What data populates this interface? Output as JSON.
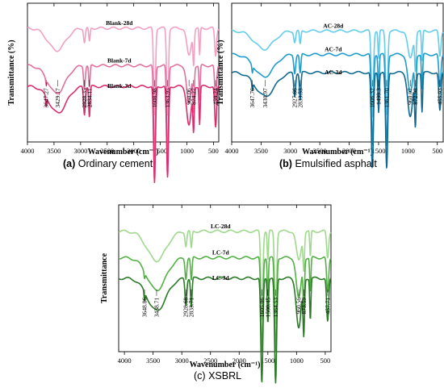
{
  "chart_data": [
    {
      "type": "line",
      "panel": "a",
      "caption": {
        "letter": "(a)",
        "text": "Ordinary cement"
      },
      "xlabel": "Wavenumber (cm⁻¹)",
      "ylabel": "Transmittance (%)",
      "xlim": [
        4000,
        400
      ],
      "xticks": [
        4000,
        3500,
        3000,
        2500,
        2000,
        1500,
        1000,
        500
      ],
      "grid": false,
      "y_ticks_shown": false,
      "series": [
        {
          "name": "Blank-28d",
          "color": "#f2a0c2",
          "offset": 0.82,
          "peaks": [
            [
              3450,
              0.16,
              230
            ],
            [
              2927,
              0.1,
              22
            ],
            [
              2834,
              0.1,
              18
            ],
            [
              1609,
              0.62,
              25
            ],
            [
              1364,
              0.62,
              25
            ],
            [
              960,
              0.2,
              60
            ],
            [
              873,
              0.24,
              18
            ],
            [
              760,
              0.2,
              15
            ],
            [
              459,
              0.2,
              25
            ]
          ]
        },
        {
          "name": "Blank-7d",
          "color": "#e1709e",
          "offset": 0.55,
          "peaks": [
            [
              3450,
              0.2,
              230
            ],
            [
              3647,
              0.04,
              12
            ],
            [
              2928,
              0.16,
              22
            ],
            [
              2834,
              0.16,
              18
            ],
            [
              1609,
              0.66,
              25
            ],
            [
              1364,
              0.66,
              25
            ],
            [
              960,
              0.28,
              60
            ],
            [
              873,
              0.3,
              18
            ],
            [
              760,
              0.25,
              15
            ],
            [
              459,
              0.26,
              25
            ]
          ]
        },
        {
          "name": "Blank-3d",
          "color": "#d92e6f",
          "offset": 0.4,
          "peaks": [
            [
              3429,
              0.19,
              230
            ],
            [
              3647,
              0.07,
              12
            ],
            [
              2928,
              0.2,
              22
            ],
            [
              2834,
              0.22,
              18
            ],
            [
              1609,
              0.7,
              25
            ],
            [
              1364,
              0.66,
              25
            ],
            [
              960,
              0.28,
              60
            ],
            [
              874,
              0.3,
              18
            ],
            [
              760,
              0.27,
              15
            ],
            [
              459,
              0.3,
              25
            ]
          ]
        }
      ],
      "annotations": [
        "3647.27",
        "3429.17",
        "2928.35",
        "2834.11",
        "1608.98",
        "1363.95",
        "960.06",
        "874.27",
        "459.24"
      ]
    },
    {
      "type": "line",
      "panel": "b",
      "caption": {
        "letter": "(b)",
        "text": "Emulsified asphalt"
      },
      "xlabel": "Wavenumber (cm⁻¹)",
      "ylabel": "Transmittance (%)",
      "xlim": [
        4000,
        400
      ],
      "xticks": [
        4000,
        3500,
        3000,
        2500,
        2000,
        1500,
        1000,
        500
      ],
      "grid": false,
      "y_ticks_shown": false,
      "series": [
        {
          "name": "AC-28d",
          "color": "#63cdeb",
          "offset": 0.8,
          "peaks": [
            [
              3450,
              0.13,
              230
            ],
            [
              2927,
              0.08,
              22
            ],
            [
              2834,
              0.1,
              18
            ],
            [
              1606,
              0.62,
              25
            ],
            [
              1499,
              0.2,
              15
            ],
            [
              1362,
              0.6,
              25
            ],
            [
              960,
              0.2,
              60
            ],
            [
              873,
              0.26,
              18
            ],
            [
              760,
              0.22,
              15
            ],
            [
              456,
              0.18,
              25
            ]
          ]
        },
        {
          "name": "AC-7d",
          "color": "#1e9ccc",
          "offset": 0.63,
          "peaks": [
            [
              3450,
              0.16,
              230
            ],
            [
              3648,
              0.05,
              12
            ],
            [
              2927,
              0.13,
              22
            ],
            [
              2834,
              0.14,
              18
            ],
            [
              1606,
              0.66,
              25
            ],
            [
              1499,
              0.25,
              15
            ],
            [
              1362,
              0.66,
              25
            ],
            [
              960,
              0.28,
              60
            ],
            [
              873,
              0.32,
              18
            ],
            [
              760,
              0.25,
              15
            ],
            [
              456,
              0.24,
              25
            ]
          ]
        },
        {
          "name": "AC-3d",
          "color": "#0f6b92",
          "offset": 0.5,
          "peaks": [
            [
              3431,
              0.17,
              230
            ],
            [
              3648,
              0.06,
              12
            ],
            [
              2928,
              0.17,
              22
            ],
            [
              2834,
              0.2,
              18
            ],
            [
              1606,
              0.7,
              25
            ],
            [
              1499,
              0.28,
              15
            ],
            [
              1362,
              0.7,
              25
            ],
            [
              960,
              0.32,
              60
            ],
            [
              873,
              0.36,
              18
            ],
            [
              760,
              0.28,
              15
            ],
            [
              456,
              0.28,
              25
            ]
          ]
        }
      ],
      "annotations": [
        "3647.76",
        "3430.97",
        "2927.66",
        "2833.53",
        "1606.32",
        "1499.3",
        "1361.70",
        "960.07",
        "872.98",
        "455.93"
      ]
    },
    {
      "type": "line",
      "panel": "c",
      "caption": {
        "letter": "(c)",
        "text": "XSBRL"
      },
      "xlabel": "Wavenumber (cm⁻¹)",
      "ylabel": "Transmittance",
      "xlim": [
        4100,
        400
      ],
      "xticks": [
        4000,
        3500,
        3000,
        2500,
        2000,
        1500,
        1000,
        500
      ],
      "grid": false,
      "y_ticks_shown": false,
      "series": [
        {
          "name": "LC-28d",
          "color": "#9fd98d",
          "offset": 0.82,
          "peaks": [
            [
              3440,
              0.2,
              230
            ],
            [
              2928,
              0.1,
              22
            ],
            [
              2834,
              0.12,
              18
            ],
            [
              1605,
              0.6,
              25
            ],
            [
              1500,
              0.2,
              15
            ],
            [
              1365,
              0.62,
              25
            ],
            [
              961,
              0.2,
              60
            ],
            [
              874,
              0.24,
              18
            ],
            [
              760,
              0.18,
              15
            ],
            [
              458,
              0.18,
              25
            ]
          ]
        },
        {
          "name": "LC-7d",
          "color": "#53b045",
          "offset": 0.64,
          "peaks": [
            [
              3440,
              0.22,
              230
            ],
            [
              3649,
              0.04,
              12
            ],
            [
              2928,
              0.14,
              22
            ],
            [
              2834,
              0.16,
              18
            ],
            [
              1605,
              0.64,
              25
            ],
            [
              1500,
              0.26,
              15
            ],
            [
              1365,
              0.64,
              25
            ],
            [
              961,
              0.28,
              60
            ],
            [
              874,
              0.32,
              18
            ],
            [
              760,
              0.24,
              15
            ],
            [
              458,
              0.24,
              25
            ]
          ]
        },
        {
          "name": "LC-3d",
          "color": "#2b7a28",
          "offset": 0.5,
          "peaks": [
            [
              3439,
              0.22,
              230
            ],
            [
              3649,
              0.06,
              12
            ],
            [
              2929,
              0.18,
              22
            ],
            [
              2834,
              0.2,
              18
            ],
            [
              1605,
              0.72,
              25
            ],
            [
              1500,
              0.3,
              15
            ],
            [
              1365,
              0.72,
              25
            ],
            [
              961,
              0.34,
              60
            ],
            [
              874,
              0.36,
              18
            ],
            [
              760,
              0.28,
              15
            ],
            [
              458,
              0.3,
              25
            ]
          ]
        }
      ],
      "annotations": [
        "3648.86",
        "3438.71",
        "2928.68",
        "2833.71",
        "1605.06",
        "1500.45",
        "1364.53",
        "960.56",
        "873.59",
        "457.71"
      ]
    }
  ]
}
